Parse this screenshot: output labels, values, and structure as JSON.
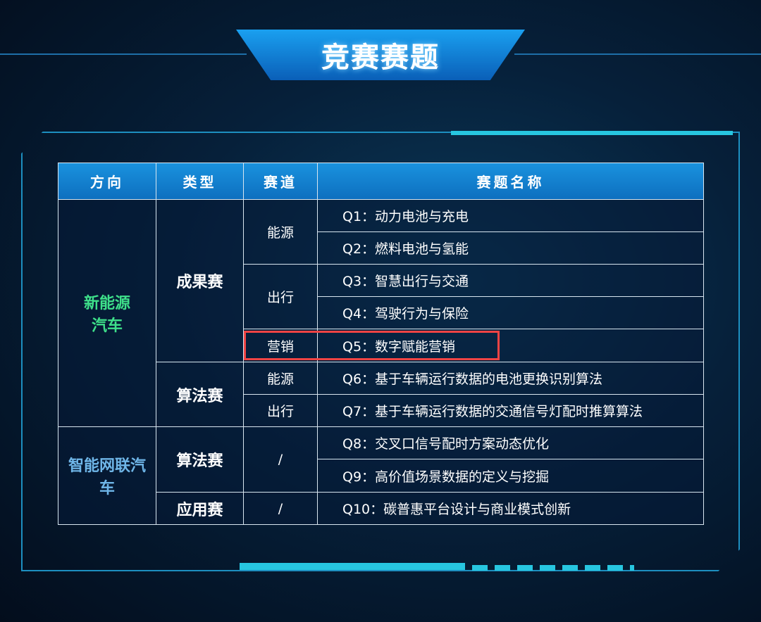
{
  "title": "竞赛赛题",
  "colors": {
    "header_bg": "#1484d4",
    "highlight_box": "#ef4444",
    "direction1": "#3ee08a",
    "direction2": "#6fb6e8"
  },
  "table": {
    "headers": [
      "方向",
      "类型",
      "赛道",
      "赛题名称"
    ],
    "directions": [
      "新能源汽车",
      "智能网联汽车"
    ],
    "types": [
      "成果赛",
      "算法赛",
      "算法赛",
      "应用赛"
    ],
    "tracks": [
      "能源",
      "出行",
      "营销",
      "能源",
      "出行",
      "/",
      "/"
    ],
    "questions": [
      "Q1：动力电池与充电",
      "Q2：燃料电池与氢能",
      "Q3：智慧出行与交通",
      "Q4：驾驶行为与保险",
      "Q5：数字赋能营销",
      "Q6：基于车辆运行数据的电池更换识别算法",
      "Q7：基于车辆运行数据的交通信号灯配时推算算法",
      "Q8：交叉口信号配时方案动态优化",
      "Q9：高价值场景数据的定义与挖掘",
      "Q10：碳普惠平台设计与商业模式创新"
    ],
    "highlighted_row": "Q5"
  }
}
